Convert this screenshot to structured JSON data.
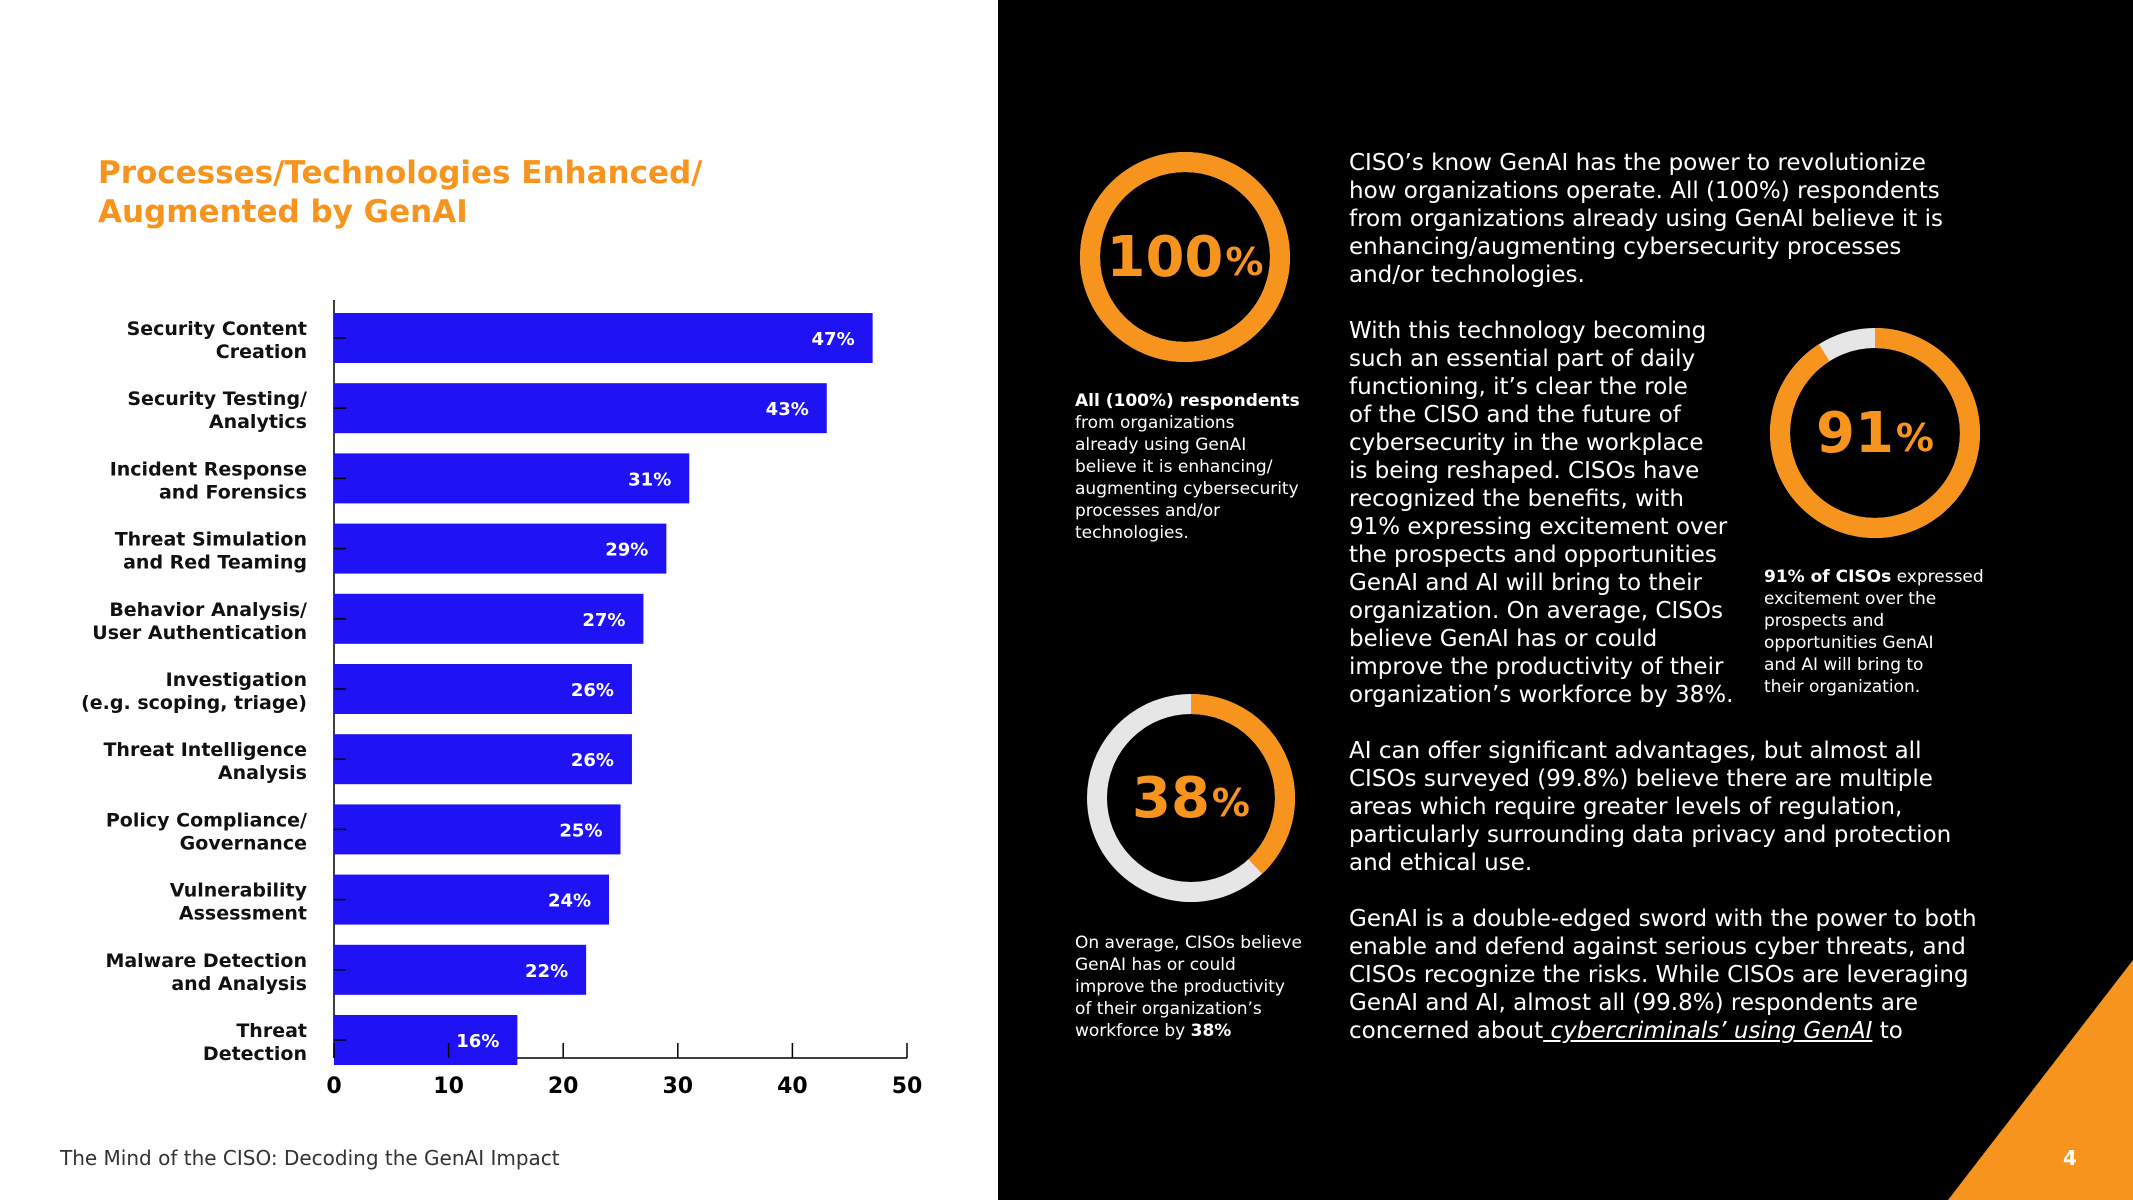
{
  "chart_data": {
    "type": "bar",
    "orientation": "horizontal",
    "title": "Processes/Technologies Enhanced/ Augmented by GenAI",
    "categories": [
      [
        "Security Content",
        "Creation"
      ],
      [
        "Security Testing/",
        "Analytics"
      ],
      [
        "Incident Response",
        "and Forensics"
      ],
      [
        "Threat Simulation",
        "and Red Teaming"
      ],
      [
        "Behavior Analysis/",
        "User Authentication"
      ],
      [
        "Investigation",
        "(e.g. scoping, triage)"
      ],
      [
        "Threat Intelligence",
        "Analysis"
      ],
      [
        "Policy Compliance/",
        "Governance"
      ],
      [
        "Vulnerability",
        "Assessment"
      ],
      [
        "Malware Detection",
        "and Analysis"
      ],
      [
        "Threat",
        "Detection"
      ]
    ],
    "values": [
      47,
      43,
      31,
      29,
      27,
      26,
      26,
      25,
      24,
      22,
      16
    ],
    "value_labels": [
      "47%",
      "43%",
      "31%",
      "29%",
      "27%",
      "26%",
      "26%",
      "25%",
      "24%",
      "22%",
      "16%"
    ],
    "xlim": [
      0,
      50
    ],
    "x_ticks": [
      0,
      10,
      20,
      30,
      40,
      50
    ],
    "bar_color": "#1f13f5",
    "grid": false
  },
  "colors": {
    "accent": "#f7941d",
    "ring_track": "#e6e6e6",
    "bar": "#1f13f5"
  },
  "footer": {
    "text": "The Mind of the CISO: Decoding the GenAI Impact"
  },
  "page_number": "4",
  "stats": [
    {
      "value": 100,
      "number": "100",
      "unit": "%",
      "caption_bold": "All (100%) respondents",
      "caption_lines": [
        "from organizations",
        "already using GenAI",
        "believe it is enhancing/",
        "augmenting cybersecurity",
        "processes and/or",
        "technologies."
      ]
    },
    {
      "value": 91,
      "number": "91",
      "unit": "%",
      "caption_bold": "91% of CISOs",
      "caption_first_rest": " expressed",
      "caption_lines": [
        "excitement over the",
        "prospects and",
        "opportunities GenAI",
        "and AI will bring to",
        "their organization."
      ]
    },
    {
      "value": 38,
      "number": "38",
      "unit": "%",
      "caption_lines": [
        "On average, CISOs believe",
        "GenAI has or could",
        "improve the productivity",
        "of their organization’s"
      ],
      "caption_last_pre": "workforce by ",
      "caption_last_bold": "38%"
    }
  ],
  "paragraphs": {
    "p1": [
      "CISO’s know GenAI has the power to revolutionize",
      "how organizations operate. All (100%) respondents",
      "from organizations already using GenAI believe it is",
      "enhancing/augmenting cybersecurity processes",
      "and/or technologies."
    ],
    "p2": [
      "With this technology becoming",
      "such an essential part of daily",
      "functioning, it’s clear the role",
      "of the CISO and the future of",
      "cybersecurity in the workplace",
      "is being reshaped. CISOs have",
      "recognized the benefits, with",
      "91% expressing excitement over",
      "the prospects and opportunities",
      "GenAI and AI will bring to their",
      "organization. On average, CISOs",
      "believe GenAI has or could",
      "improve the productivity of their",
      "organization’s workforce by 38%."
    ],
    "p3": [
      "AI can offer significant advantages, but almost all",
      "CISOs surveyed (99.8%) believe there are multiple",
      "areas which require greater levels of regulation,",
      "particularly surrounding data privacy and protection",
      "and ethical use."
    ],
    "p4": [
      "GenAI is a double-edged sword with the power to both",
      "enable and defend against serious cyber threats, and",
      "CISOs recognize the risks. While CISOs are leveraging",
      "GenAI and AI, almost all (99.8%) respondents are"
    ],
    "p4_last_pre": "concerned about",
    "p4_link": " cybercriminals’ using GenAI",
    "p4_last_post": " to"
  }
}
